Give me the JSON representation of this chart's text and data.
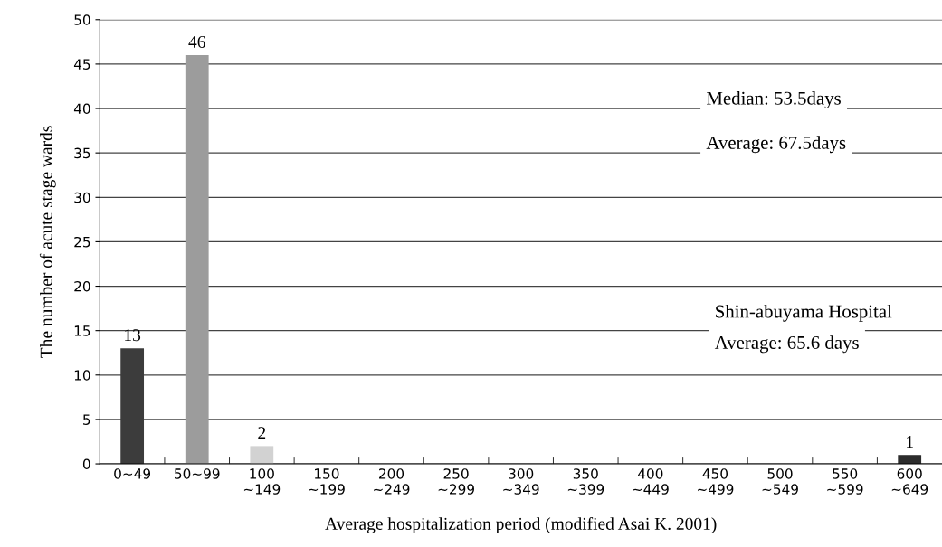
{
  "chart_data": {
    "type": "bar",
    "xlabel": "Average hospitalization period (modified Asai K. 2001)",
    "ylabel": "The number of acute stage wards",
    "categories": [
      "0~49",
      "50~99",
      "100\n~149",
      "150\n~199",
      "200\n~249",
      "250\n~299",
      "300\n~349",
      "350\n~399",
      "400\n~449",
      "450\n~499",
      "500\n~549",
      "550\n~599",
      "600\n~649"
    ],
    "values": [
      13,
      46,
      2,
      0,
      0,
      0,
      0,
      0,
      0,
      0,
      0,
      0,
      1
    ],
    "colors": [
      "#3c3c3c",
      "#9c9c9c",
      "#d2d2d2",
      "#808080",
      "#808080",
      "#808080",
      "#808080",
      "#808080",
      "#808080",
      "#808080",
      "#808080",
      "#808080",
      "#2c2c2c"
    ],
    "value_labels": [
      "13",
      "46",
      "2",
      null,
      null,
      null,
      null,
      null,
      null,
      null,
      null,
      null,
      "1"
    ],
    "ylim": [
      0,
      50
    ],
    "yticks": [
      0,
      5,
      10,
      15,
      20,
      25,
      30,
      35,
      40,
      45,
      50
    ],
    "grid": "y",
    "annotations": [
      "Median: 53.5days",
      "Average: 67.5days",
      "Shin-abuyama Hospital",
      "Average: 65.6 days"
    ]
  }
}
